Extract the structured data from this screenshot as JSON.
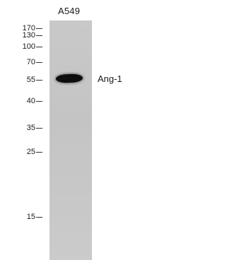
{
  "blot": {
    "lane_label": "A549",
    "band_label": "Ang-1",
    "markers": [
      "170",
      "130",
      "100",
      "70",
      "55",
      "40",
      "35",
      "25",
      "15"
    ]
  }
}
